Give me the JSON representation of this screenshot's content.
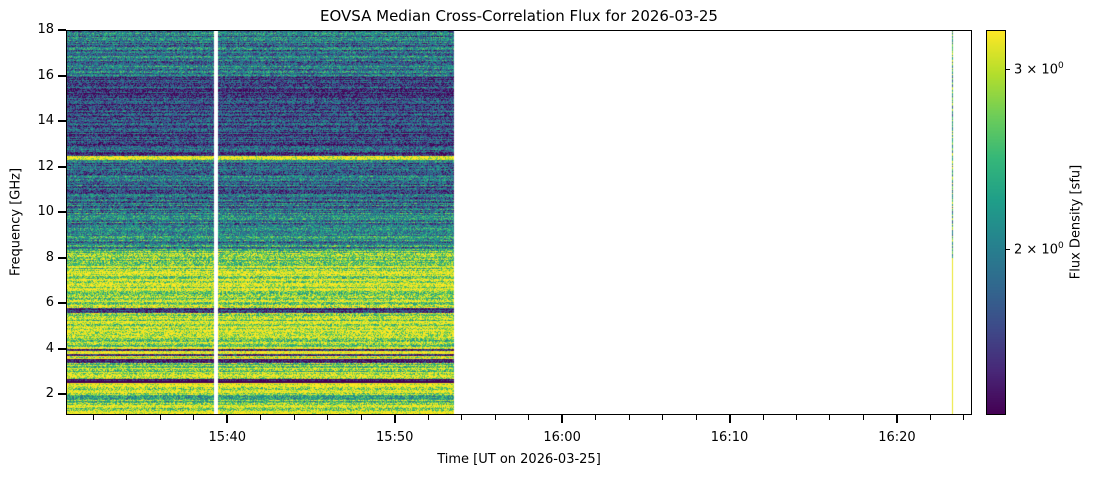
{
  "chart_data": {
    "type": "heatmap",
    "title": "EOVSA Median Cross-Correlation Flux for 2026-03-25",
    "xlabel": "Time [UT on 2026-03-25]",
    "ylabel": "Frequency [GHz]",
    "colorbar_label": "Flux Density [sfu]",
    "colormap": "viridis",
    "color_scale": "log",
    "clim": [
      1.38,
      3.28
    ],
    "colorbar_ticks": [
      {
        "value": 3,
        "label_mantissa": "3 × 10",
        "label_exp": "0"
      },
      {
        "value": 2,
        "label_mantissa": "2 × 10",
        "label_exp": "0"
      }
    ],
    "xlim": [
      "15:30:22",
      "16:24:29"
    ],
    "ylim": [
      1.08,
      18
    ],
    "x_major_ticks": [
      "15:40",
      "15:50",
      "16:00",
      "16:10",
      "16:20"
    ],
    "x_minor_interval_min": 2,
    "y_ticks": [
      2,
      4,
      6,
      8,
      10,
      12,
      14,
      16,
      18
    ],
    "data_segments": [
      {
        "start": "15:30:22",
        "end": "15:39:10"
      },
      {
        "start": "15:39:25",
        "end": "15:53:32"
      }
    ],
    "spike_time": "16:23:17",
    "frequency_band_median_flux": [
      {
        "f": [
          1.08,
          1.6
        ],
        "flux": 3.2
      },
      {
        "f": [
          1.6,
          2.0
        ],
        "flux": 2.6
      },
      {
        "f": [
          2.0,
          2.5
        ],
        "flux": 3.25
      },
      {
        "f": [
          2.5,
          2.7
        ],
        "flux": 1.4
      },
      {
        "f": [
          2.7,
          3.4
        ],
        "flux": 2.9
      },
      {
        "f": [
          3.4,
          3.55
        ],
        "flux": 1.4
      },
      {
        "f": [
          3.55,
          3.7
        ],
        "flux": 3.2
      },
      {
        "f": [
          3.7,
          3.8
        ],
        "flux": 1.4
      },
      {
        "f": [
          3.8,
          3.9
        ],
        "flux": 3.2
      },
      {
        "f": [
          3.9,
          4.0
        ],
        "flux": 1.4
      },
      {
        "f": [
          4.0,
          5.6
        ],
        "flux": 3.0
      },
      {
        "f": [
          5.6,
          5.8
        ],
        "flux": 1.6
      },
      {
        "f": [
          5.8,
          7.7
        ],
        "flux": 3.0
      },
      {
        "f": [
          7.7,
          8.4
        ],
        "flux": 2.6
      },
      {
        "f": [
          8.4,
          10.0
        ],
        "flux": 2.1
      },
      {
        "f": [
          10.0,
          12.3
        ],
        "flux": 1.9
      },
      {
        "f": [
          12.3,
          12.5
        ],
        "flux": 3.2
      },
      {
        "f": [
          12.5,
          16.0
        ],
        "flux": 1.7
      },
      {
        "f": [
          16.0,
          18.0
        ],
        "flux": 1.95
      }
    ]
  }
}
